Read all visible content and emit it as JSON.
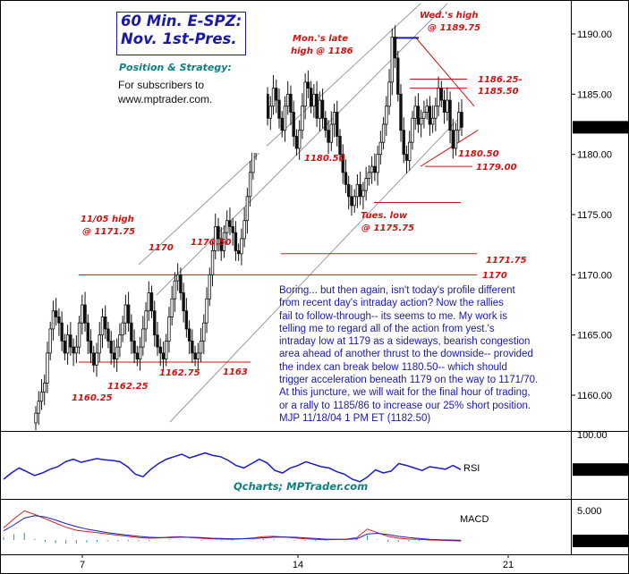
{
  "title": {
    "line1": "60 Min. E-SPZ:",
    "line2": "Nov. 1st-Pres."
  },
  "strategy_label": "Position & Strategy:",
  "subscriber_note": {
    "line1": "For subscribers to",
    "line2": "www.mptrader.com."
  },
  "commentary": [
    "Boring... but then again, isn't today's profile different",
    "from recent day's intraday action?  Now the rallies",
    "fail to follow-through-- its seems to me. My work is",
    "telling me to regard all of the action from yest.'s",
    "intraday low at 1179 as a sideways, bearish congestion",
    "area ahead of another thrust to the downside-- provided",
    "the index can break below 1180.50--  which should",
    "trigger acceleration beneath 1179 on the way to 1171/70.",
    "At this juncture, we will wait for the final hour of trading,",
    "or a rally to 1185/86 to increase our 25% short position.",
    "MJP 11/18/04 1 PM ET (1182.50)"
  ],
  "credit": "Qcharts; MPTrader.com",
  "colors": {
    "candle": "#111111",
    "annotation": "#d41010",
    "channel": "#9a9a9a",
    "rsi": "#1a1ad0",
    "macd_line": "#d42020",
    "macd_signal": "#1a1ad0",
    "macd_hist": "#2a9a9a",
    "last_price_box": "#000000",
    "wed_high_bar": "#1a1aa8"
  },
  "chart_data": [
    {
      "type": "line",
      "subtype": "candlestick",
      "x_ticks": [
        "7",
        "14",
        "21"
      ],
      "y_ticks": [
        "1160.00",
        "1165.00",
        "1170.00",
        "1175.00",
        "1180.00",
        "1185.00",
        "1190.00"
      ],
      "ylim": [
        1156.5,
        1192.5
      ],
      "last_price": "1182.25",
      "series": [
        {
          "values": [
            1158.5,
            1159.5,
            1160.25,
            1161,
            1163.5,
            1165.5,
            1167,
            1166.5,
            1166,
            1164.5,
            1163.5,
            1165,
            1164,
            1163.5,
            1164,
            1166,
            1167.5,
            1166,
            1164.5,
            1163.5,
            1162.5,
            1163.5,
            1165,
            1166.5,
            1165.5,
            1164.5,
            1163.5,
            1163,
            1164,
            1165,
            1166,
            1167.5,
            1166,
            1164.5,
            1163.5,
            1163,
            1164,
            1165.5,
            1167,
            1168.5,
            1167,
            1165,
            1164,
            1163.5,
            1163,
            1164.5,
            1166.5,
            1168,
            1169.5,
            1170,
            1168.5,
            1167,
            1165.5,
            1164.5,
            1163.5,
            1163,
            1163.5,
            1164.5,
            1166,
            1168,
            1170,
            1172,
            1174,
            1173,
            1172,
            1173.5,
            1174.5,
            1174,
            1173.5,
            1172,
            1171.75,
            1173,
            1174.5,
            1176.5,
            1178.5,
            1180.5,
            1181,
            1182.5,
            1184,
            1185,
            1183,
            1184,
            1185.5,
            1184.5,
            1183,
            1182,
            1184,
            1185,
            1183.5,
            1181.5,
            1180.5,
            1182,
            1184,
            1186,
            1185.5,
            1184,
            1185,
            1183,
            1184.5,
            1183,
            1182,
            1181,
            1182.5,
            1183.5,
            1181.5,
            1180,
            1178.5,
            1177.5,
            1176.5,
            1175.75,
            1176.5,
            1177.5,
            1176.5,
            1177,
            1178,
            1178.5,
            1179,
            1178.5,
            1180,
            1181,
            1182.5,
            1184,
            1186,
            1189.75,
            1188,
            1185,
            1182,
            1180,
            1179.5,
            1181,
            1183,
            1184,
            1182.5,
            1183,
            1183.5,
            1184,
            1182.5,
            1183,
            1184,
            1185.5,
            1184.5,
            1183.5,
            1184.5,
            1182,
            1180.5,
            1182,
            1183.5,
            1182.25
          ]
        }
      ],
      "annotations": [
        "11/05 high",
        "@ 1171.75",
        "1160.25",
        "1162.25",
        "1162.75",
        "1163",
        "1170",
        "1170.50",
        "Mon.'s late",
        "high @ 1186",
        "1180.50",
        "Tues. low",
        "@ 1175.75",
        "Wed.'s high",
        "@ 1189.75",
        "1186.25-",
        "1185.50",
        "1180.50",
        "1179.00",
        "1171.75",
        "1170"
      ]
    },
    {
      "type": "line",
      "subtype": "RSI",
      "y_ticks": [
        "100.00"
      ],
      "ylim": [
        0,
        100
      ],
      "last_value": "45.45",
      "label": "RSI",
      "series": [
        {
          "values": [
            30,
            40,
            48,
            42,
            36,
            40,
            46,
            50,
            58,
            62,
            57,
            60,
            63,
            61,
            60,
            58,
            50,
            38,
            34,
            46,
            55,
            62,
            66,
            70,
            64,
            68,
            72,
            68,
            66,
            60,
            52,
            48,
            55,
            62,
            56,
            44,
            40,
            48,
            52,
            58,
            54,
            50,
            48,
            42,
            38,
            30,
            26,
            34,
            45,
            40,
            43,
            55,
            52,
            48,
            44,
            50,
            48,
            46,
            52,
            45.45
          ]
        }
      ]
    },
    {
      "type": "line",
      "subtype": "MACD",
      "y_ticks": [
        "5.000"
      ],
      "ylim": [
        -0.5,
        6
      ],
      "last_value": "-0.164",
      "label": "MACD",
      "series": [
        {
          "values": [
            2,
            3.5,
            4.8,
            4.2,
            3.5,
            2.8,
            2.1,
            1.6,
            1.4,
            1.2,
            1.0,
            0.8,
            0.6,
            0.4,
            0.3,
            0.35,
            0.5,
            0.55,
            0.4,
            0.3,
            0.2,
            0.15,
            0.1,
            0.2,
            0.35,
            0.55,
            0.6,
            0.5,
            0.35,
            0.2,
            0.1,
            0.05,
            0.1,
            0.15,
            0.4,
            1.8,
            1.2,
            0.6,
            0.3,
            0.15,
            0.1,
            0.0,
            -0.05,
            -0.1,
            -0.164
          ]
        },
        {
          "values": [
            1.5,
            2.5,
            3.6,
            4.0,
            3.8,
            3.3,
            2.7,
            2.2,
            1.8,
            1.5,
            1.2,
            1.0,
            0.8,
            0.6,
            0.45,
            0.4,
            0.4,
            0.45,
            0.45,
            0.4,
            0.3,
            0.25,
            0.2,
            0.2,
            0.25,
            0.35,
            0.45,
            0.5,
            0.45,
            0.35,
            0.25,
            0.15,
            0.1,
            0.12,
            0.2,
            1.0,
            1.1,
            0.9,
            0.6,
            0.4,
            0.25,
            0.1,
            0.05,
            0.0,
            -0.05
          ]
        }
      ]
    }
  ]
}
